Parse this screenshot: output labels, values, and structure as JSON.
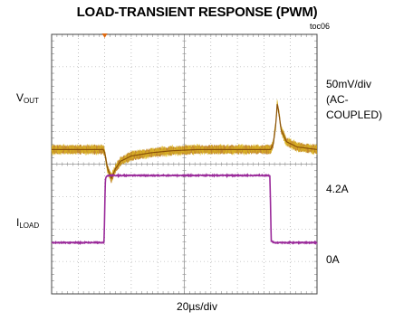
{
  "title": "LOAD-TRANSIENT RESPONSE (PWM)",
  "figure_code": "toc06",
  "labels": {
    "vout_main": "V",
    "vout_sub": "OUT",
    "iload_main": "I",
    "iload_sub": "LOAD",
    "vout_scale_1": "50mV/div",
    "vout_scale_2": "(AC-",
    "vout_scale_3": "COUPLED)",
    "iload_high": "4.2A",
    "iload_low": "0A",
    "time_scale": "20µs/div"
  },
  "colors": {
    "vout_trace": "#b8720a",
    "vout_highlight": "#e0c020",
    "iload_trace": "#9a2a9a",
    "grid": "#9a9a9a",
    "frame": "#444444",
    "marker": "#e06a10"
  },
  "chart_data": {
    "type": "line",
    "title": "LOAD-TRANSIENT RESPONSE (PWM)",
    "xlabel": "20µs/div",
    "ylabel": "",
    "x_unit": "µs",
    "x_range": [
      0,
      200
    ],
    "divisions": {
      "x": 10,
      "y": 8
    },
    "grid": true,
    "series": [
      {
        "name": "VOUT",
        "unit": "mV (AC-coupled)",
        "scale": "50mV/div",
        "description_points": [
          [
            0,
            0
          ],
          [
            39,
            0
          ],
          [
            40,
            -5
          ],
          [
            42,
            -28
          ],
          [
            45,
            -45
          ],
          [
            48,
            -30
          ],
          [
            52,
            -18
          ],
          [
            60,
            -10
          ],
          [
            75,
            -5
          ],
          [
            90,
            -2
          ],
          [
            110,
            0
          ],
          [
            150,
            0
          ],
          [
            165,
            0
          ],
          [
            167,
            8
          ],
          [
            169,
            40
          ],
          [
            170,
            70
          ],
          [
            171,
            60
          ],
          [
            173,
            30
          ],
          [
            177,
            12
          ],
          [
            185,
            4
          ],
          [
            200,
            0
          ]
        ],
        "ripple_mV": 8
      },
      {
        "name": "ILOAD",
        "unit": "A",
        "description_points": [
          [
            0,
            0
          ],
          [
            39.5,
            0
          ],
          [
            40.5,
            4.0
          ],
          [
            42,
            4.2
          ],
          [
            164.5,
            4.2
          ],
          [
            165.5,
            0.1
          ],
          [
            168,
            0
          ],
          [
            200,
            0
          ]
        ],
        "levels": {
          "high": 4.2,
          "low": 0
        }
      }
    ]
  }
}
